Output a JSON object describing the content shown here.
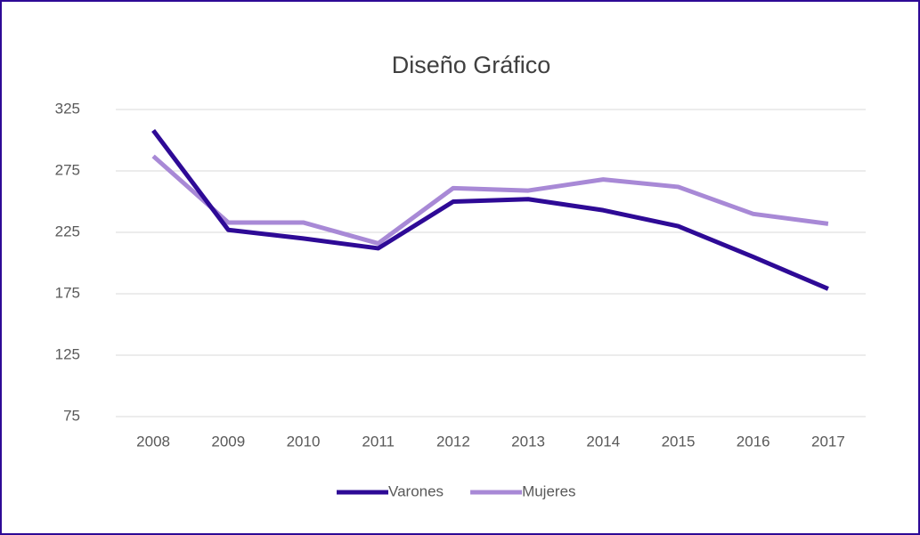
{
  "chart_data": {
    "type": "line",
    "title": "Diseño Gráfico",
    "categories": [
      "2008",
      "2009",
      "2010",
      "2011",
      "2012",
      "2013",
      "2014",
      "2015",
      "2016",
      "2017"
    ],
    "series": [
      {
        "name": "Varones",
        "color": "#2e0a96",
        "values": [
          308,
          227,
          220,
          212,
          250,
          252,
          243,
          230,
          205,
          179
        ]
      },
      {
        "name": "Mujeres",
        "color": "#a889d6",
        "values": [
          287,
          233,
          233,
          216,
          261,
          259,
          268,
          262,
          240,
          232
        ]
      }
    ],
    "ylim": [
      75,
      325
    ],
    "yticks": [
      75,
      125,
      175,
      225,
      275,
      325
    ],
    "grid": true,
    "legend": "bottom"
  }
}
